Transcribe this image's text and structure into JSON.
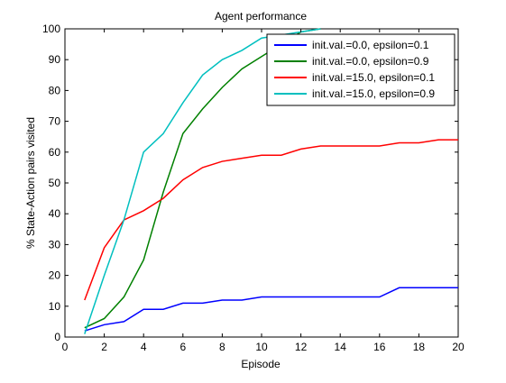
{
  "chart_data": {
    "type": "line",
    "title": "Agent performance",
    "xlabel": "Episode",
    "ylabel": "% State-Action pairs visited",
    "xlim": [
      0,
      20
    ],
    "ylim": [
      0,
      100
    ],
    "xticks": [
      0,
      2,
      4,
      6,
      8,
      10,
      12,
      14,
      16,
      18,
      20
    ],
    "yticks": [
      0,
      10,
      20,
      30,
      40,
      50,
      60,
      70,
      80,
      90,
      100
    ],
    "grid": false,
    "legend_position": "top-right",
    "series": [
      {
        "name": "init.val.=0.0, epsilon=0.1",
        "color": "#0000ff",
        "x": [
          1,
          2,
          3,
          4,
          5,
          6,
          7,
          8,
          9,
          10,
          11,
          12,
          13,
          14,
          15,
          16,
          17,
          18,
          19,
          20
        ],
        "y": [
          2,
          4,
          5,
          9,
          9,
          11,
          11,
          12,
          12,
          13,
          13,
          13,
          13,
          13,
          13,
          13,
          16,
          16,
          16,
          16
        ]
      },
      {
        "name": "init.val.=0.0, epsilon=0.9",
        "color": "#008000",
        "x": [
          1,
          2,
          3,
          4,
          5,
          6,
          7,
          8,
          9,
          10,
          11,
          12,
          13
        ],
        "y": [
          3,
          6,
          13,
          25,
          47,
          66,
          74,
          81,
          87,
          91,
          95,
          99,
          100
        ]
      },
      {
        "name": "init.val.=15.0, epsilon=0.1",
        "color": "#ff0000",
        "x": [
          1,
          2,
          3,
          4,
          5,
          6,
          7,
          8,
          9,
          10,
          11,
          12,
          13,
          14,
          15,
          16,
          17,
          18,
          19,
          20
        ],
        "y": [
          12,
          29,
          38,
          41,
          45,
          51,
          55,
          57,
          58,
          59,
          59,
          61,
          62,
          62,
          62,
          62,
          63,
          63,
          64,
          64
        ]
      },
      {
        "name": "init.val.=15.0, epsilon=0.9",
        "color": "#00bfbf",
        "x": [
          1,
          2,
          3,
          4,
          5,
          6,
          7,
          8,
          9,
          10,
          11,
          12,
          13
        ],
        "y": [
          1,
          20,
          38,
          60,
          66,
          76,
          85,
          90,
          93,
          97,
          98,
          99,
          100
        ]
      }
    ]
  }
}
